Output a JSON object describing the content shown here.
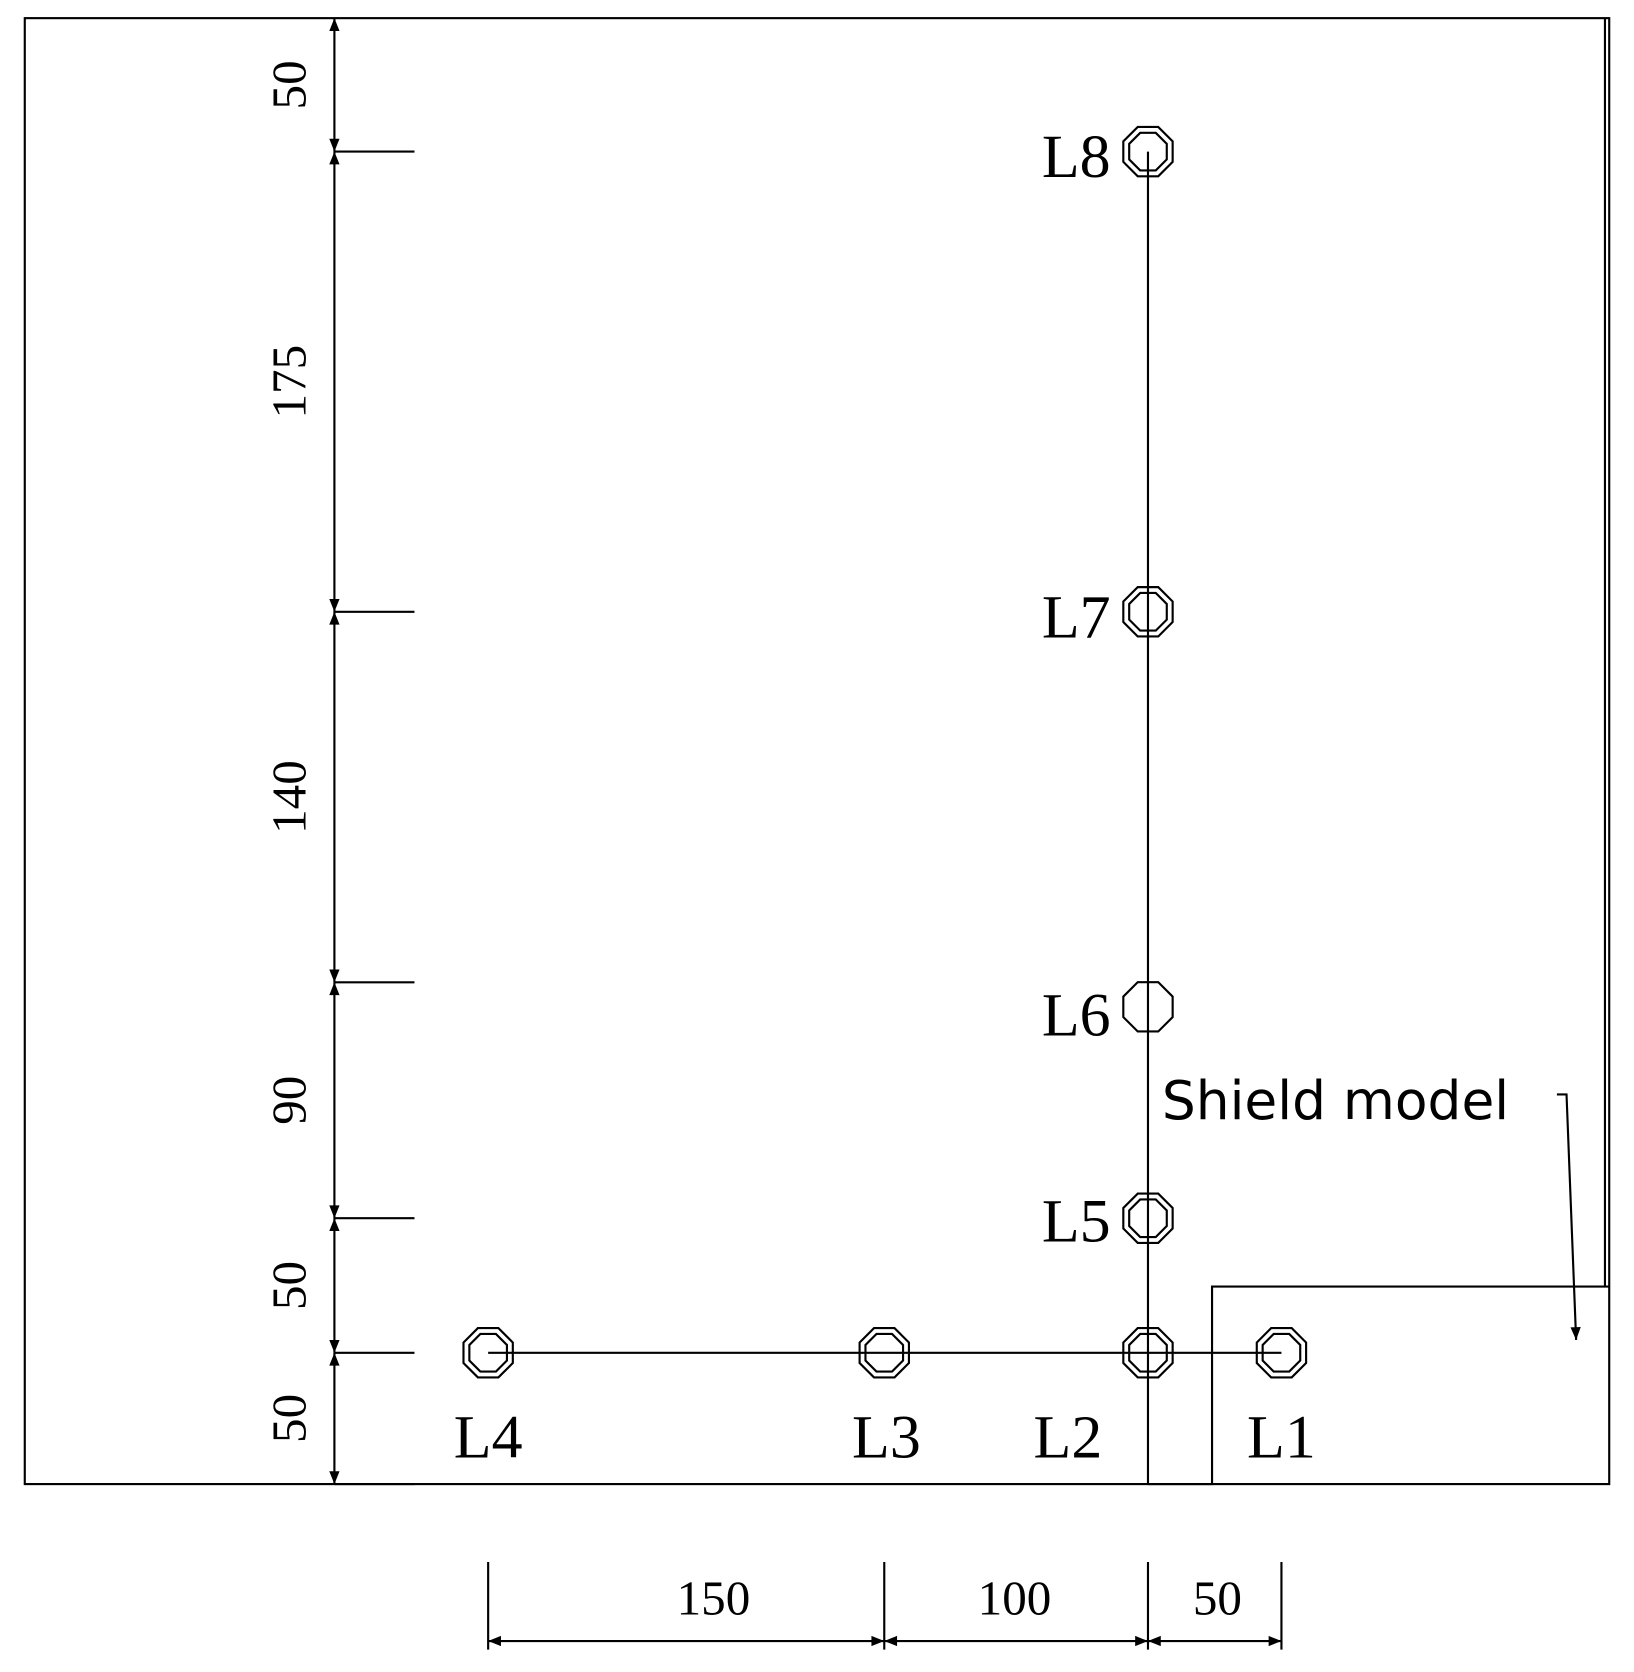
{
  "sensors": {
    "labels": [
      "L1",
      "L2",
      "L3",
      "L4",
      "L5",
      "L6",
      "L7",
      "L8"
    ]
  },
  "dimensions": {
    "vertical": [
      50,
      175,
      140,
      90,
      50,
      50
    ],
    "horizontal": [
      150,
      100,
      50
    ]
  },
  "annotation": "Shield model"
}
